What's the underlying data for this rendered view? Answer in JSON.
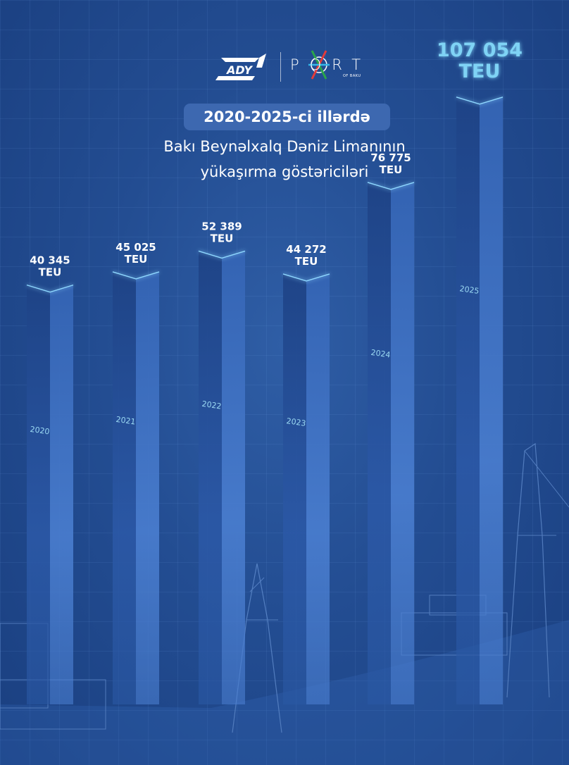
{
  "header": {
    "logo_left": "ADY",
    "logo_right": "PORT",
    "logo_right_sub": "OF BAKU",
    "title_badge": "2020-2025-ci illərdə",
    "subtitle_line1": "Bakı Beynəlxalq Dəniz Limanının",
    "subtitle_line2": "yükaşırma göstəriciləri"
  },
  "colors": {
    "background": "#234d92",
    "bar_left_face": "#20478c",
    "bar_right_face": "#3d6ec0",
    "highlight_label": "#7fd3f5",
    "edge_glow": "#8fd8ff"
  },
  "chart_data": {
    "type": "bar",
    "categories": [
      "2020",
      "2021",
      "2022",
      "2023",
      "2024",
      "2025"
    ],
    "values": [
      40345,
      45025,
      52389,
      44272,
      76775,
      107054
    ],
    "value_labels": [
      "40 345",
      "45 025",
      "52 389",
      "44 272",
      "76 775",
      "107 054"
    ],
    "unit": "TEU",
    "title": "2020-2025-ci illərdə Bakı Beynəlxalq Dəniz Limanının yükaşırma göstəriciləri",
    "grid": true,
    "highlight_index": 5
  }
}
